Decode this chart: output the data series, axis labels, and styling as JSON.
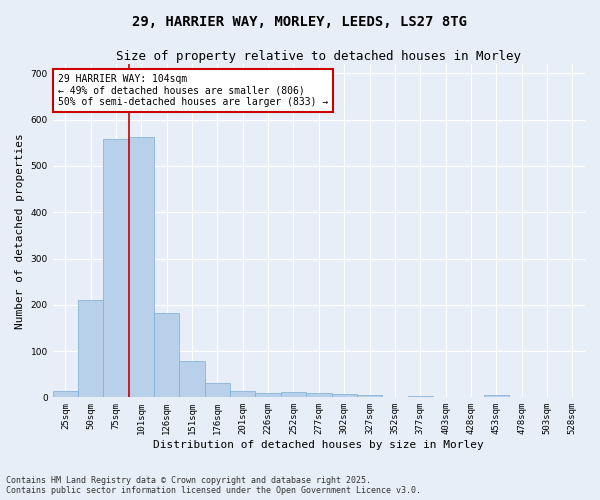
{
  "title_line1": "29, HARRIER WAY, MORLEY, LEEDS, LS27 8TG",
  "title_line2": "Size of property relative to detached houses in Morley",
  "xlabel": "Distribution of detached houses by size in Morley",
  "ylabel": "Number of detached properties",
  "categories": [
    "25sqm",
    "50sqm",
    "75sqm",
    "101sqm",
    "126sqm",
    "151sqm",
    "176sqm",
    "201sqm",
    "226sqm",
    "252sqm",
    "277sqm",
    "302sqm",
    "327sqm",
    "352sqm",
    "377sqm",
    "403sqm",
    "428sqm",
    "453sqm",
    "478sqm",
    "503sqm",
    "528sqm"
  ],
  "values": [
    13,
    211,
    558,
    563,
    182,
    78,
    31,
    13,
    10,
    11,
    10,
    8,
    5,
    0,
    3,
    0,
    0,
    5,
    0,
    0,
    0
  ],
  "bar_color": "#b8d0ea",
  "bar_edge_color": "#7aadd4",
  "vline_color": "#cc0000",
  "annotation_text": "29 HARRIER WAY: 104sqm\n← 49% of detached houses are smaller (806)\n50% of semi-detached houses are larger (833) →",
  "annotation_box_color": "#ffffff",
  "annotation_box_edge": "#cc0000",
  "ylim": [
    0,
    720
  ],
  "yticks": [
    0,
    100,
    200,
    300,
    400,
    500,
    600,
    700
  ],
  "footnote": "Contains HM Land Registry data © Crown copyright and database right 2025.\nContains public sector information licensed under the Open Government Licence v3.0.",
  "background_color": "#e8eef8",
  "grid_color": "#ffffff",
  "title_fontsize": 10,
  "subtitle_fontsize": 9,
  "axis_label_fontsize": 8,
  "tick_fontsize": 6.5,
  "annotation_fontsize": 7,
  "footnote_fontsize": 6
}
